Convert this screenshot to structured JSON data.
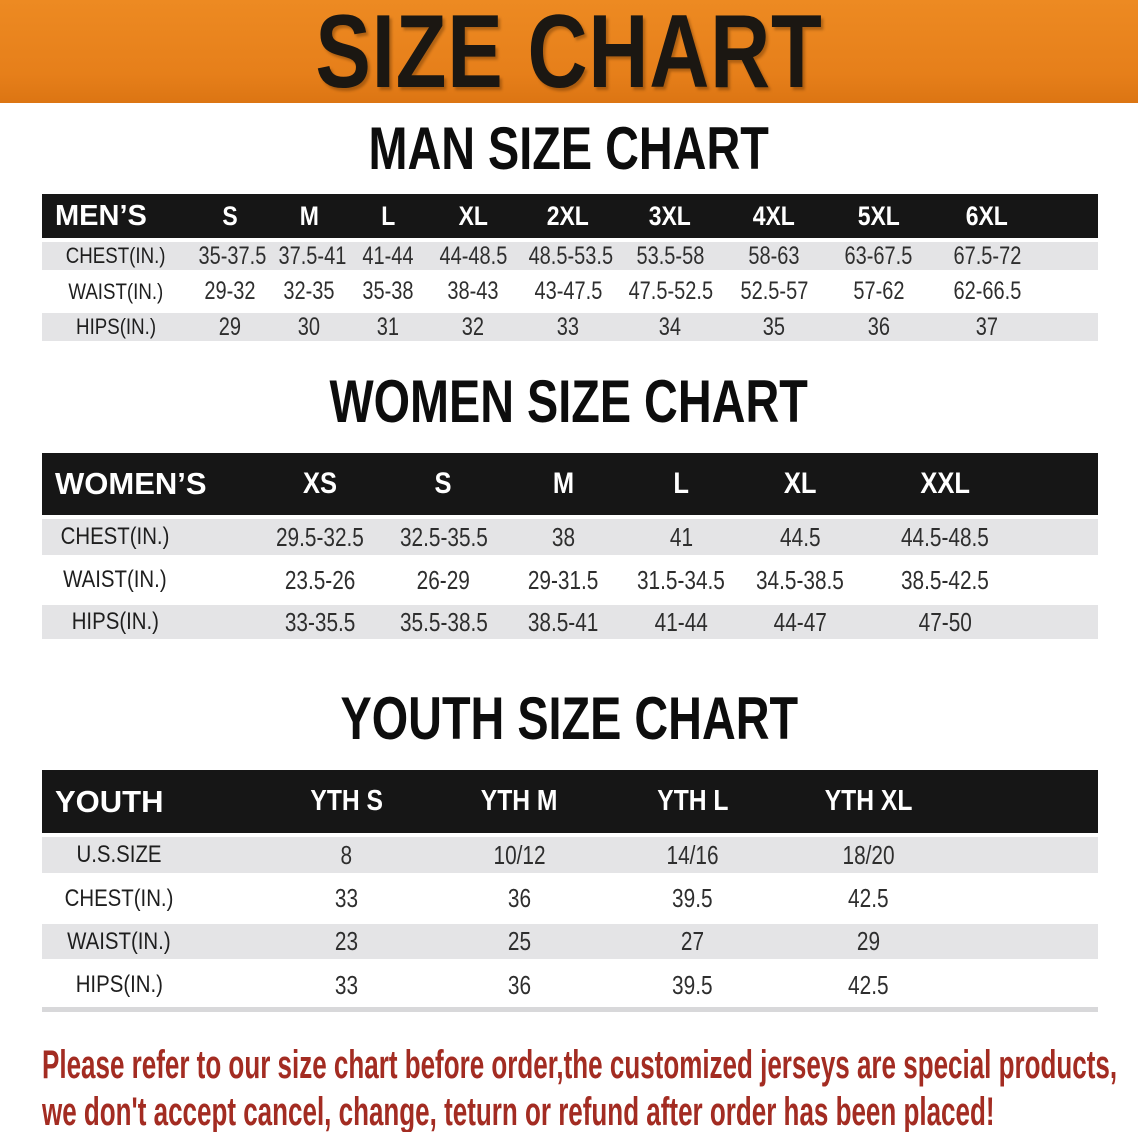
{
  "banner": {
    "title": "SIZE CHART",
    "bg_color": "#E8821E"
  },
  "sections": [
    {
      "title": "MAN SIZE CHART",
      "header": "MEN’S",
      "sizes": [
        "S",
        "M",
        "L",
        "XL",
        "2XL",
        "3XL",
        "4XL",
        "5XL",
        "6XL"
      ],
      "rows": [
        {
          "label": "CHEST(IN.)",
          "values": [
            "35-37.5",
            "37.5-41",
            "41-44",
            "44-48.5",
            "48.5-53.5",
            "53.5-58",
            "58-63",
            "63-67.5",
            "67.5-72"
          ]
        },
        {
          "label": "WAIST(IN.)",
          "values": [
            "29-32",
            "32-35",
            "35-38",
            "38-43",
            "43-47.5",
            "47.5-52.5",
            "52.5-57",
            "57-62",
            "62-66.5"
          ]
        },
        {
          "label": "HIPS(IN.)",
          "values": [
            "29",
            "30",
            "31",
            "32",
            "33",
            "34",
            "35",
            "36",
            "37"
          ]
        }
      ]
    },
    {
      "title": "WOMEN SIZE CHART",
      "header": "WOMEN’S",
      "sizes": [
        "XS",
        "S",
        "M",
        "L",
        "XL",
        "XXL"
      ],
      "rows": [
        {
          "label": "CHEST(IN.)",
          "values": [
            "29.5-32.5",
            "32.5-35.5",
            "38",
            "41",
            "44.5",
            "44.5-48.5"
          ]
        },
        {
          "label": "WAIST(IN.)",
          "values": [
            "23.5-26",
            "26-29",
            "29-31.5",
            "31.5-34.5",
            "34.5-38.5",
            "38.5-42.5"
          ]
        },
        {
          "label": "HIPS(IN.)",
          "values": [
            "33-35.5",
            "35.5-38.5",
            "38.5-41",
            "41-44",
            "44-47",
            "47-50"
          ]
        }
      ]
    },
    {
      "title": "YOUTH SIZE CHART",
      "header": "YOUTH",
      "sizes": [
        "YTH S",
        "YTH M",
        "YTH L",
        "YTH XL"
      ],
      "rows": [
        {
          "label": "U.S.SIZE",
          "values": [
            "8",
            "10/12",
            "14/16",
            "18/20"
          ]
        },
        {
          "label": "CHEST(IN.)",
          "values": [
            "33",
            "36",
            "39.5",
            "42.5"
          ]
        },
        {
          "label": "WAIST(IN.)",
          "values": [
            "23",
            "25",
            "27",
            "29"
          ]
        },
        {
          "label": "HIPS(IN.)",
          "values": [
            "33",
            "36",
            "39.5",
            "42.5"
          ]
        }
      ]
    }
  ],
  "disclaimer": {
    "line1": "Please refer to our size chart before order,the customized jerseys are special products,",
    "line2": "we don't accept cancel, change, teturn or refund after order has been placed!",
    "color": "#A32C22"
  }
}
